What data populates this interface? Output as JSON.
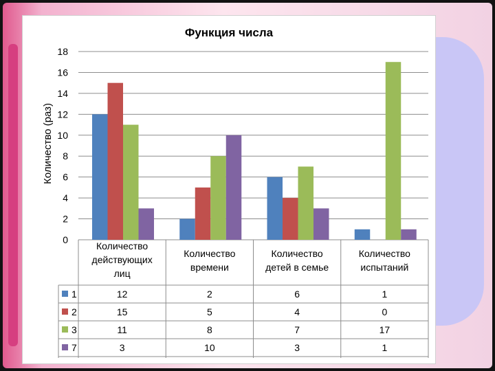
{
  "colors": {
    "series": [
      "#4f81bd",
      "#c0504d",
      "#9bbb59",
      "#8064a2"
    ],
    "grid": "#8c8c8c"
  },
  "chart_data": {
    "type": "bar",
    "title": "Функция числа",
    "ylabel": "Количество (раз)",
    "xlabel": "",
    "ylim": [
      0,
      18
    ],
    "ytick_step": 2,
    "grid": true,
    "legend": "data-table",
    "categories": [
      [
        "Количество",
        "действующих",
        "лиц"
      ],
      [
        "Количество",
        "времени"
      ],
      [
        "Количество",
        "детей в семье"
      ],
      [
        "Количество",
        "испытаний"
      ]
    ],
    "series": [
      {
        "name": "1",
        "values": [
          12,
          2,
          6,
          1
        ]
      },
      {
        "name": "2",
        "values": [
          15,
          5,
          4,
          0
        ]
      },
      {
        "name": "3",
        "values": [
          11,
          8,
          7,
          17
        ]
      },
      {
        "name": "7",
        "values": [
          3,
          10,
          3,
          1
        ]
      }
    ]
  }
}
